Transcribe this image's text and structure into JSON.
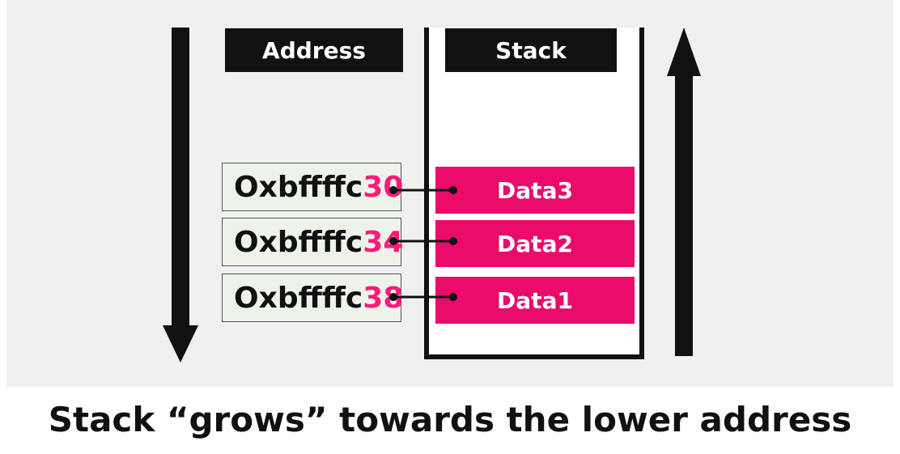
{
  "headers": {
    "address_label": "Address",
    "stack_label": "Stack"
  },
  "rows": [
    {
      "address_prefix": "Oxbffffc",
      "address_suffix": "30",
      "data_label": "Data3"
    },
    {
      "address_prefix": "Oxbffffc",
      "address_suffix": "34",
      "data_label": "Data2"
    },
    {
      "address_prefix": "Oxbffffc",
      "address_suffix": "38",
      "data_label": "Data1"
    }
  ],
  "caption": "Stack “grows” towards the lower address",
  "colors": {
    "panel_background": "#f0f0f0",
    "data_fill": "#ea0b6a",
    "address_highlight": "#ff1b7a",
    "address_box_fill": "#eef3ea",
    "dark": "#111111"
  },
  "icons": {
    "left_arrow": "arrow-down-icon",
    "right_arrow": "arrow-up-icon"
  }
}
